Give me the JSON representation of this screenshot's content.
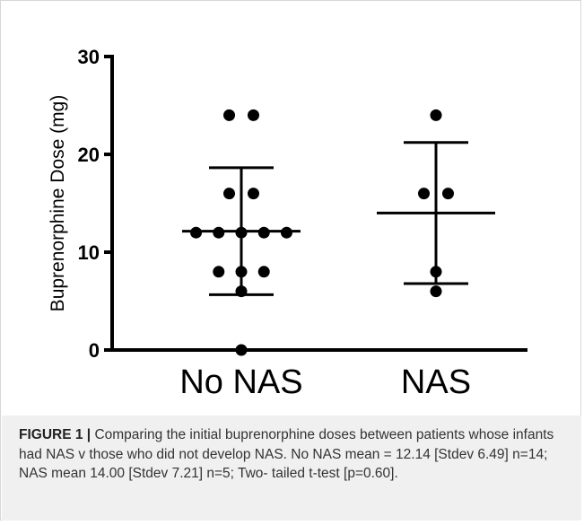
{
  "chart_data": {
    "type": "scatter",
    "ylabel": "Buprenorphine Dose (mg)",
    "xlabel": "",
    "ylim": [
      0,
      30
    ],
    "yticks": [
      0,
      10,
      20,
      30
    ],
    "categories": [
      "No NAS",
      "NAS"
    ],
    "groups": [
      {
        "name": "No NAS",
        "points": [
          0,
          6,
          8,
          8,
          8,
          12,
          12,
          12,
          12,
          12,
          16,
          16,
          24,
          24
        ],
        "mean": 12.14,
        "sd": 6.49,
        "n": 14
      },
      {
        "name": "NAS",
        "points": [
          6,
          8,
          16,
          16,
          24
        ],
        "mean": 14.0,
        "sd": 7.21,
        "n": 5
      }
    ],
    "grid": false,
    "marker_color": "#000000"
  },
  "caption": {
    "label": "FIGURE 1 |",
    "text": "Comparing the initial buprenorphine doses between patients whose infants had NAS v those who did not develop NAS. No NAS mean = 12.14 [Stdev 6.49] n=14; NAS mean 14.00 [Stdev 7.21] n=5; Two- tailed t-test [p=0.60]."
  },
  "colors": {
    "caption_background": "#f0f0f0",
    "border": "#d7d7d7"
  }
}
